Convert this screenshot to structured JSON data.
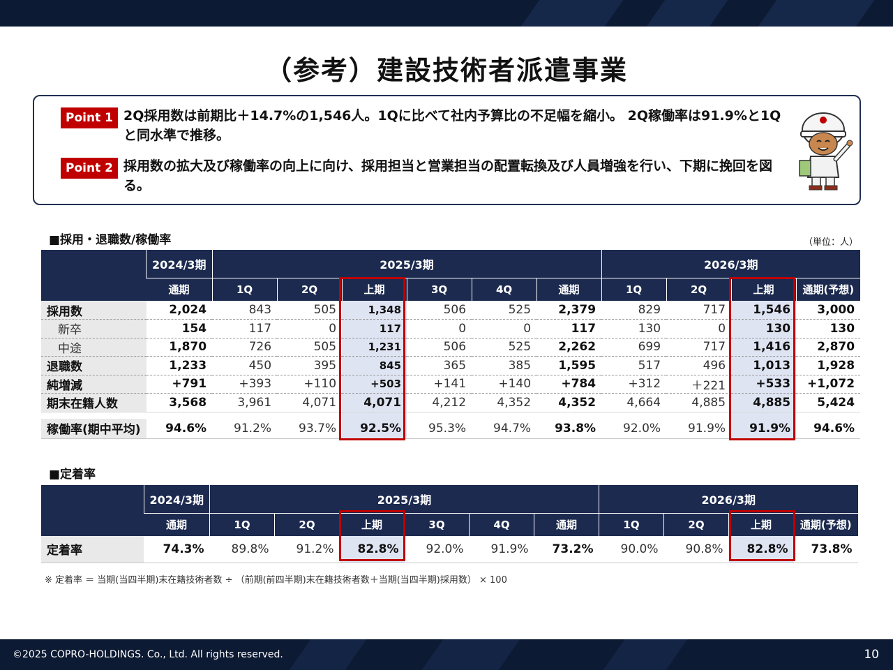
{
  "header": {},
  "title": "（参考）建設技術者派遣事業",
  "points": [
    {
      "badge": "Point 1",
      "text": "2Q採用数は前期比＋14.7%の1,546人。1Qに比べて社内予算比の不足幅を縮小。 2Q稼働率は91.9%と1Qと同水準で推移。"
    },
    {
      "badge": "Point 2",
      "text": "採用数の拡大及び稼働率の向上に向け、採用担当と営業担当の配置転換及び人員増強を行い、下期に挽回を図る。"
    }
  ],
  "mascot_icon": "helmet-worker-mascot-icon",
  "section1": {
    "heading": "■採用・退職数/稼働率",
    "unit": "（単位：人）",
    "periods": [
      "2024/3期",
      "2025/3期",
      "2026/3期"
    ],
    "columns": [
      "通期",
      "1Q",
      "2Q",
      "上期",
      "3Q",
      "4Q",
      "通期",
      "1Q",
      "2Q",
      "上期",
      "通期(予想)"
    ],
    "rows": [
      {
        "label": "採用数",
        "values": [
          "2,024",
          "843",
          "505",
          "1,348",
          "506",
          "525",
          "2,379",
          "829",
          "717",
          "1,546",
          "3,000"
        ]
      },
      {
        "label": "新卒",
        "values": [
          "154",
          "117",
          "0",
          "117",
          "0",
          "0",
          "117",
          "130",
          "0",
          "130",
          "130"
        ]
      },
      {
        "label": "中途",
        "values": [
          "1,870",
          "726",
          "505",
          "1,231",
          "506",
          "525",
          "2,262",
          "699",
          "717",
          "1,416",
          "2,870"
        ]
      },
      {
        "label": "退職数",
        "values": [
          "1,233",
          "450",
          "395",
          "845",
          "365",
          "385",
          "1,595",
          "517",
          "496",
          "1,013",
          "1,928"
        ]
      },
      {
        "label": "純増減",
        "values": [
          "+791",
          "+393",
          "+110",
          "+503",
          "+141",
          "+140",
          "+784",
          "+312",
          "＋221",
          "+533",
          "+1,072"
        ]
      },
      {
        "label": "期末在籍人数",
        "values": [
          "3,568",
          "3,961",
          "4,071",
          "4,071",
          "4,212",
          "4,352",
          "4,352",
          "4,664",
          "4,885",
          "4,885",
          "5,424"
        ]
      }
    ],
    "rate_row": {
      "label": "稼働率(期中平均)",
      "values": [
        "94.6%",
        "91.2%",
        "93.7%",
        "92.5%",
        "95.3%",
        "94.7%",
        "93.8%",
        "92.0%",
        "91.9%",
        "91.9%",
        "94.6%"
      ]
    }
  },
  "section2": {
    "heading": "■定着率",
    "periods": [
      "2024/3期",
      "2025/3期",
      "2026/3期"
    ],
    "columns": [
      "通期",
      "1Q",
      "2Q",
      "上期",
      "3Q",
      "4Q",
      "通期",
      "1Q",
      "2Q",
      "上期",
      "通期(予想)"
    ],
    "row": {
      "label": "定着率",
      "values": [
        "74.3%",
        "89.8%",
        "91.2%",
        "82.8%",
        "92.0%",
        "91.9%",
        "73.2%",
        "90.0%",
        "90.8%",
        "82.8%",
        "73.8%"
      ]
    }
  },
  "note": "※ 定着率 ＝ 当期(当四半期)末在籍技術者数 ÷ （前期(前四半期)末在籍技術者数＋当期(当四半期)採用数） × 100",
  "footer": {
    "copyright": "©2025 COPRO-HOLDINGS. Co., Ltd. All rights reserved.",
    "page": "10"
  }
}
